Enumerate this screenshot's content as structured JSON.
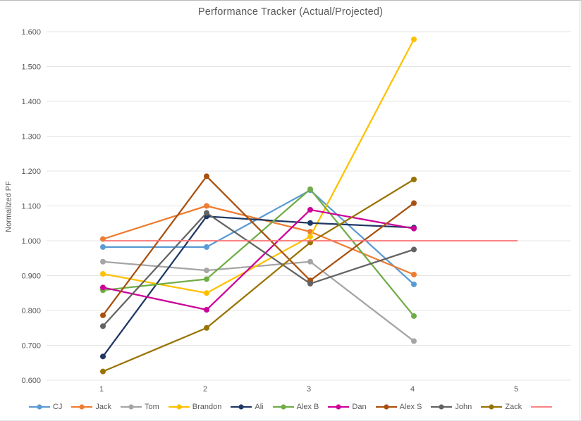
{
  "window": {
    "border_top_color": "#b9b9b9",
    "border_right_color": "#d9d9d9"
  },
  "chart_data": {
    "type": "line",
    "title": "Performance Tracker (Actual/Projected)",
    "ylabel": "Normalized PF",
    "xlabel": "",
    "grid": true,
    "legend_position": "bottom",
    "background": "#ffffff",
    "text_color": "#595959",
    "gridline_color": "#e4e4e4",
    "y_axis": {
      "min": 0.6,
      "max": 1.6,
      "step": 0.1,
      "decimals": 3,
      "tick_labels": [
        "0.600",
        "0.700",
        "0.800",
        "0.900",
        "1.000",
        "1.100",
        "1.200",
        "1.300",
        "1.400",
        "1.500",
        "1.600"
      ]
    },
    "x_ticks": [
      "1",
      "2",
      "3",
      "4",
      "5"
    ],
    "x": [
      1,
      2,
      3,
      4
    ],
    "series": [
      {
        "name": "CJ",
        "color": "#5B9BD5",
        "values": [
          0.982,
          0.982,
          1.145,
          0.875
        ]
      },
      {
        "name": "Jack",
        "color": "#ED7D31",
        "values": [
          1.005,
          1.1,
          1.026,
          0.903
        ]
      },
      {
        "name": "Tom",
        "color": "#A5A5A5",
        "values": [
          0.94,
          0.915,
          0.94,
          0.712
        ]
      },
      {
        "name": "Brandon",
        "color": "#FFC000",
        "values": [
          0.905,
          0.85,
          1.012,
          1.578
        ]
      },
      {
        "name": "Ali",
        "color": "#1F3864",
        "values": [
          0.668,
          1.07,
          1.051,
          1.038
        ]
      },
      {
        "name": "Alex B",
        "color": "#70AD47",
        "values": [
          0.858,
          0.89,
          1.148,
          0.784
        ]
      },
      {
        "name": "Dan",
        "color": "#CC0099",
        "values": [
          0.866,
          0.802,
          1.089,
          1.035
        ]
      },
      {
        "name": "Alex S",
        "color": "#A8500F",
        "values": [
          0.786,
          1.185,
          0.886,
          1.108
        ]
      },
      {
        "name": "John",
        "color": "#636363",
        "values": [
          0.755,
          1.08,
          0.877,
          0.975
        ]
      },
      {
        "name": "Zack",
        "color": "#997300",
        "values": [
          0.625,
          0.75,
          0.995,
          1.176
        ]
      }
    ],
    "baseline": {
      "name": "",
      "color": "#FA7373",
      "value": 1.0,
      "x_start": 1,
      "x_end": 5
    }
  }
}
